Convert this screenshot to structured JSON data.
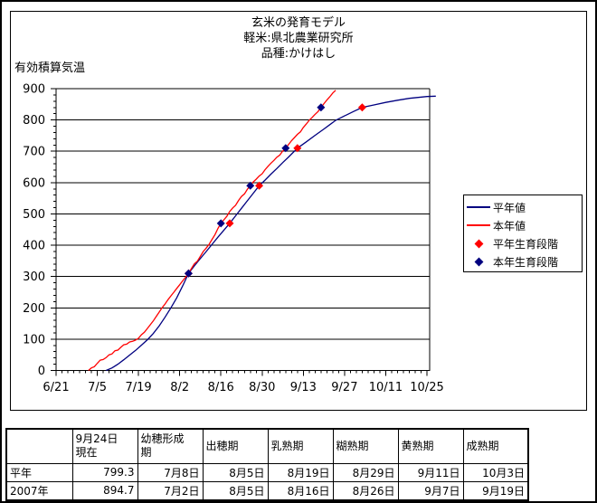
{
  "window": {
    "bg": "#ffffff",
    "border_color": "#000000"
  },
  "chart": {
    "title_lines": [
      "玄米の発育モデル",
      "軽米:県北農業研究所",
      "品種:かけはし"
    ],
    "y_axis_title": "有効積算気温",
    "legend": {
      "items": [
        {
          "label": "平年値",
          "type": "line",
          "color": "#000080"
        },
        {
          "label": "本年値",
          "type": "line",
          "color": "#ff0000"
        },
        {
          "label": "平年生育段階",
          "type": "diamond",
          "color": "#ff0000"
        },
        {
          "label": "本年生育段階",
          "type": "diamond",
          "color": "#000080"
        }
      ]
    }
  },
  "chart_data": {
    "type": "line",
    "title": "玄米の発育モデル 軽米:県北農業研究所 品種:かけはし",
    "xlabel": "",
    "ylabel": "有効積算気温",
    "ylim": [
      0,
      900
    ],
    "y_ticks": [
      0,
      100,
      200,
      300,
      400,
      500,
      600,
      700,
      800,
      900
    ],
    "y_minor_step": 20,
    "x_tick_labels": [
      "6/21",
      "7/5",
      "7/19",
      "8/2",
      "8/16",
      "8/30",
      "9/13",
      "9/27",
      "10/11",
      "10/25"
    ],
    "x_major_interval_days": 14,
    "x_minor_interval_days": 2,
    "x_span_days": 126,
    "grid": "horizontal",
    "legend_position": "right",
    "series": [
      {
        "id": "normal-year-line",
        "name": "平年値",
        "color": "#000080",
        "points": [
          [
            17,
            0
          ],
          [
            19,
            8
          ],
          [
            21,
            20
          ],
          [
            23,
            34
          ],
          [
            25,
            49
          ],
          [
            27,
            64
          ],
          [
            29,
            81
          ],
          [
            31,
            98
          ],
          [
            33,
            118
          ],
          [
            35,
            142
          ],
          [
            37,
            170
          ],
          [
            39,
            200
          ],
          [
            41,
            232
          ],
          [
            43,
            270
          ],
          [
            45,
            310
          ],
          [
            47,
            334
          ],
          [
            49,
            357
          ],
          [
            51,
            380
          ],
          [
            53,
            403
          ],
          [
            55,
            426
          ],
          [
            57,
            448
          ],
          [
            59,
            470
          ],
          [
            61,
            494
          ],
          [
            63,
            518
          ],
          [
            65,
            542
          ],
          [
            67,
            566
          ],
          [
            69,
            590
          ],
          [
            71,
            608
          ],
          [
            73,
            627
          ],
          [
            75,
            645
          ],
          [
            77,
            664
          ],
          [
            79,
            682
          ],
          [
            82,
            710
          ],
          [
            85,
            730
          ],
          [
            88,
            751
          ],
          [
            91,
            771
          ],
          [
            93,
            785
          ],
          [
            95,
            799
          ],
          [
            98,
            813
          ],
          [
            101,
            827
          ],
          [
            104,
            840
          ],
          [
            108,
            848
          ],
          [
            112,
            856
          ],
          [
            116,
            863
          ],
          [
            120,
            869
          ],
          [
            123,
            872
          ],
          [
            126,
            875
          ],
          [
            129,
            876
          ]
        ]
      },
      {
        "id": "this-year-line",
        "name": "本年値",
        "color": "#ff0000",
        "points": [
          [
            11,
            0
          ],
          [
            12,
            8
          ],
          [
            13,
            12
          ],
          [
            14,
            23
          ],
          [
            15,
            33
          ],
          [
            16,
            35
          ],
          [
            17,
            41
          ],
          [
            18,
            50
          ],
          [
            19,
            53
          ],
          [
            20,
            63
          ],
          [
            21,
            65
          ],
          [
            22,
            74
          ],
          [
            23,
            82
          ],
          [
            24,
            84
          ],
          [
            25,
            91
          ],
          [
            26,
            93
          ],
          [
            27,
            97
          ],
          [
            28,
            103
          ],
          [
            29,
            114
          ],
          [
            30,
            122
          ],
          [
            31,
            134
          ],
          [
            32,
            146
          ],
          [
            33,
            158
          ],
          [
            34,
            172
          ],
          [
            35,
            186
          ],
          [
            36,
            200
          ],
          [
            37,
            212
          ],
          [
            38,
            226
          ],
          [
            39,
            238
          ],
          [
            40,
            250
          ],
          [
            41,
            262
          ],
          [
            42,
            274
          ],
          [
            43,
            286
          ],
          [
            44,
            298
          ],
          [
            45,
            310
          ],
          [
            46,
            326
          ],
          [
            47,
            341
          ],
          [
            48,
            349
          ],
          [
            49,
            364
          ],
          [
            50,
            380
          ],
          [
            51,
            391
          ],
          [
            52,
            403
          ],
          [
            53,
            419
          ],
          [
            54,
            434
          ],
          [
            55,
            454
          ],
          [
            56,
            470
          ],
          [
            57,
            481
          ],
          [
            58,
            492
          ],
          [
            59,
            508
          ],
          [
            60,
            519
          ],
          [
            61,
            528
          ],
          [
            62,
            543
          ],
          [
            63,
            556
          ],
          [
            64,
            564
          ],
          [
            65,
            579
          ],
          [
            66,
            590
          ],
          [
            67,
            602
          ],
          [
            68,
            611
          ],
          [
            69,
            621
          ],
          [
            70,
            628
          ],
          [
            71,
            641
          ],
          [
            72,
            652
          ],
          [
            73,
            662
          ],
          [
            74,
            671
          ],
          [
            75,
            681
          ],
          [
            76,
            688
          ],
          [
            77,
            701
          ],
          [
            78,
            710
          ],
          [
            79,
            722
          ],
          [
            80,
            734
          ],
          [
            81,
            744
          ],
          [
            82,
            754
          ],
          [
            83,
            762
          ],
          [
            84,
            776
          ],
          [
            85,
            787
          ],
          [
            86,
            799
          ],
          [
            87,
            808
          ],
          [
            88,
            818
          ],
          [
            89,
            827
          ],
          [
            90,
            840
          ],
          [
            91,
            852
          ],
          [
            92,
            864
          ],
          [
            93,
            874
          ],
          [
            94,
            886
          ],
          [
            95,
            894.7
          ]
        ]
      }
    ],
    "markers": [
      {
        "id": "normal-year-stages",
        "name": "平年生育段階",
        "color": "#ff0000",
        "points": [
          [
            45,
            310
          ],
          [
            59,
            470
          ],
          [
            69,
            590
          ],
          [
            82,
            710
          ],
          [
            104,
            840
          ]
        ]
      },
      {
        "id": "this-year-stages",
        "name": "本年生育段階",
        "color": "#000080",
        "points": [
          [
            45,
            310
          ],
          [
            56,
            470
          ],
          [
            66,
            590
          ],
          [
            78,
            710
          ],
          [
            90,
            840
          ]
        ]
      }
    ]
  },
  "table": {
    "headers": [
      "",
      "9月24日\n現在",
      "幼穂形成\n期",
      "出穂期",
      "乳熟期",
      "糊熟期",
      "黄熟期",
      "成熟期"
    ],
    "rows": [
      {
        "label": "平年",
        "cells": [
          "799.3",
          "7月8日",
          "8月5日",
          "8月19日",
          "8月29日",
          "9月11日",
          "10月3日"
        ]
      },
      {
        "label": "2007年",
        "cells": [
          "894.7",
          "7月2日",
          "8月5日",
          "8月16日",
          "8月26日",
          "9月7日",
          "9月19日"
        ]
      }
    ]
  }
}
